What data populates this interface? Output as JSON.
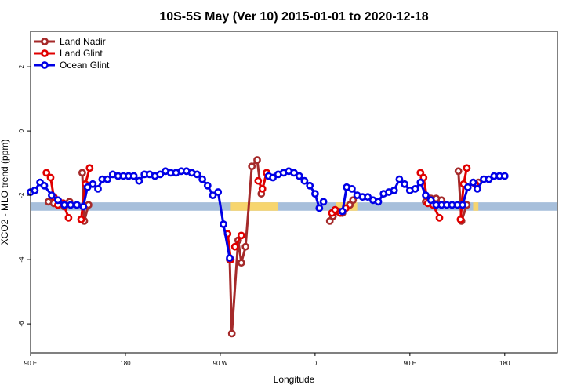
{
  "chart_data": {
    "type": "line",
    "title": "10S-5S May (Ver 10)   2015-01-01 to 2020-12-18",
    "xlabel": "Longitude",
    "ylabel": "XCO2 - MLO trend (ppm)",
    "xlim": [
      90,
      590
    ],
    "ylim": [
      -6.9,
      3.1
    ],
    "x_ticks": [
      {
        "value": 90,
        "label": "90 E"
      },
      {
        "value": 180,
        "label": "180"
      },
      {
        "value": 270,
        "label": "90 W"
      },
      {
        "value": 360,
        "label": "0"
      },
      {
        "value": 450,
        "label": "90 E"
      },
      {
        "value": 540,
        "label": "180"
      }
    ],
    "y_ticks": [
      {
        "value": 2,
        "label": "2"
      },
      {
        "value": 0,
        "label": "0"
      },
      {
        "value": -2,
        "label": "-2"
      },
      {
        "value": -4,
        "label": "-4"
      },
      {
        "value": -6,
        "label": "-6"
      }
    ],
    "surface_band": {
      "y_range": [
        -2.48,
        -2.22
      ],
      "ocean_color": "#a7bfdb",
      "land_color": "#f7d56e",
      "land_segments": [
        [
          280,
          325
        ],
        [
          380,
          400
        ],
        [
          510,
          515
        ]
      ]
    },
    "legend_position": "top-left",
    "series": [
      {
        "name": "Land Nadir",
        "color": "#a52a2a",
        "segments": [
          [
            [
              107,
              -2.2
            ],
            [
              112,
              -2.25
            ],
            [
              117,
              -2.2
            ],
            [
              122,
              -2.35
            ],
            [
              127,
              -2.2
            ]
          ],
          [
            [
              139,
              -1.3
            ],
            [
              141,
              -2.8
            ],
            [
              145,
              -2.3
            ]
          ],
          [
            [
              279,
              -4.0
            ],
            [
              281,
              -6.3
            ],
            [
              287,
              -3.4
            ],
            [
              290,
              -4.1
            ],
            [
              294,
              -3.6
            ],
            [
              300,
              -1.1
            ],
            [
              305,
              -0.9
            ],
            [
              309,
              -1.95
            ],
            [
              314,
              -1.3
            ]
          ],
          [
            [
              374,
              -2.8
            ],
            [
              377,
              -2.65
            ],
            [
              382,
              -2.5
            ],
            [
              386,
              -2.55
            ],
            [
              393,
              -2.3
            ],
            [
              396,
              -2.15
            ]
          ],
          [
            [
              465,
              -2.2
            ],
            [
              470,
              -2.1
            ],
            [
              475,
              -2.1
            ],
            [
              480,
              -2.15
            ]
          ],
          [
            [
              496,
              -1.25
            ],
            [
              499,
              -2.8
            ],
            [
              504,
              -2.3
            ]
          ],
          [
            [
              515,
              -1.6
            ]
          ]
        ]
      },
      {
        "name": "Land Glint",
        "color": "#e00000",
        "segments": [
          [
            [
              105,
              -1.3
            ],
            [
              109,
              -1.45
            ],
            [
              112,
              -2.05
            ],
            [
              116,
              -2.3
            ],
            [
              121,
              -2.25
            ],
            [
              126,
              -2.7
            ]
          ],
          [
            [
              138,
              -2.75
            ],
            [
              142,
              -1.65
            ],
            [
              146,
              -1.15
            ]
          ],
          [
            [
              277,
              -3.2
            ],
            [
              280,
              -4.0
            ]
          ],
          [
            [
              284,
              -3.6
            ],
            [
              290,
              -3.25
            ]
          ],
          [
            [
              306,
              -1.55
            ],
            [
              310,
              -1.8
            ],
            [
              314,
              -1.3
            ]
          ],
          [
            [
              376,
              -2.55
            ],
            [
              379,
              -2.45
            ],
            [
              384,
              -2.55
            ],
            [
              389,
              -2.4
            ]
          ],
          [
            [
              460,
              -1.3
            ],
            [
              463,
              -1.45
            ],
            [
              467,
              -2.25
            ],
            [
              472,
              -2.3
            ],
            [
              478,
              -2.7
            ]
          ],
          [
            [
              498,
              -2.75
            ],
            [
              501,
              -1.65
            ],
            [
              504,
              -1.15
            ]
          ],
          [
            [
              512,
              -1.65
            ]
          ]
        ]
      },
      {
        "name": "Ocean Glint",
        "color": "#0000e6",
        "segments": [
          [
            [
              90,
              -1.9
            ],
            [
              94,
              -1.85
            ],
            [
              99,
              -1.6
            ],
            [
              103,
              -1.7
            ],
            [
              110,
              -2.0
            ],
            [
              116,
              -2.15
            ],
            [
              122,
              -2.3
            ],
            [
              128,
              -2.3
            ],
            [
              134,
              -2.3
            ],
            [
              140,
              -2.35
            ],
            [
              144,
              -1.75
            ],
            [
              149,
              -1.65
            ],
            [
              154,
              -1.8
            ],
            [
              158,
              -1.5
            ],
            [
              163,
              -1.5
            ],
            [
              168,
              -1.35
            ],
            [
              173,
              -1.4
            ],
            [
              178,
              -1.4
            ],
            [
              183,
              -1.4
            ],
            [
              188,
              -1.4
            ],
            [
              193,
              -1.55
            ],
            [
              198,
              -1.35
            ],
            [
              203,
              -1.35
            ],
            [
              208,
              -1.4
            ],
            [
              213,
              -1.35
            ],
            [
              218,
              -1.25
            ],
            [
              223,
              -1.3
            ],
            [
              228,
              -1.3
            ],
            [
              233,
              -1.25
            ],
            [
              238,
              -1.25
            ],
            [
              243,
              -1.3
            ],
            [
              248,
              -1.35
            ],
            [
              253,
              -1.5
            ],
            [
              258,
              -1.7
            ],
            [
              263,
              -2.0
            ],
            [
              268,
              -1.9
            ],
            [
              273,
              -2.9
            ],
            [
              279,
              -3.95
            ]
          ],
          [
            [
              316,
              -1.4
            ],
            [
              320,
              -1.45
            ],
            [
              325,
              -1.35
            ],
            [
              330,
              -1.3
            ],
            [
              335,
              -1.25
            ],
            [
              340,
              -1.3
            ],
            [
              345,
              -1.4
            ],
            [
              350,
              -1.55
            ],
            [
              355,
              -1.7
            ],
            [
              360,
              -1.95
            ],
            [
              364,
              -2.4
            ],
            [
              368,
              -2.2
            ]
          ],
          [
            [
              386,
              -2.5
            ],
            [
              390,
              -1.75
            ],
            [
              395,
              -1.8
            ],
            [
              400,
              -2.0
            ],
            [
              405,
              -2.05
            ],
            [
              410,
              -2.05
            ],
            [
              415,
              -2.15
            ],
            [
              420,
              -2.2
            ],
            [
              425,
              -1.95
            ],
            [
              430,
              -1.9
            ],
            [
              435,
              -1.85
            ],
            [
              440,
              -1.5
            ],
            [
              445,
              -1.65
            ],
            [
              450,
              -1.85
            ],
            [
              455,
              -1.8
            ],
            [
              460,
              -1.6
            ],
            [
              465,
              -2.0
            ],
            [
              470,
              -2.15
            ],
            [
              475,
              -2.3
            ],
            [
              480,
              -2.3
            ],
            [
              485,
              -2.3
            ],
            [
              490,
              -2.3
            ],
            [
              495,
              -2.3
            ],
            [
              500,
              -2.3
            ],
            [
              505,
              -1.75
            ],
            [
              510,
              -1.6
            ],
            [
              514,
              -1.8
            ],
            [
              520,
              -1.5
            ],
            [
              525,
              -1.5
            ],
            [
              530,
              -1.4
            ],
            [
              535,
              -1.4
            ],
            [
              540,
              -1.4
            ]
          ]
        ]
      }
    ]
  }
}
